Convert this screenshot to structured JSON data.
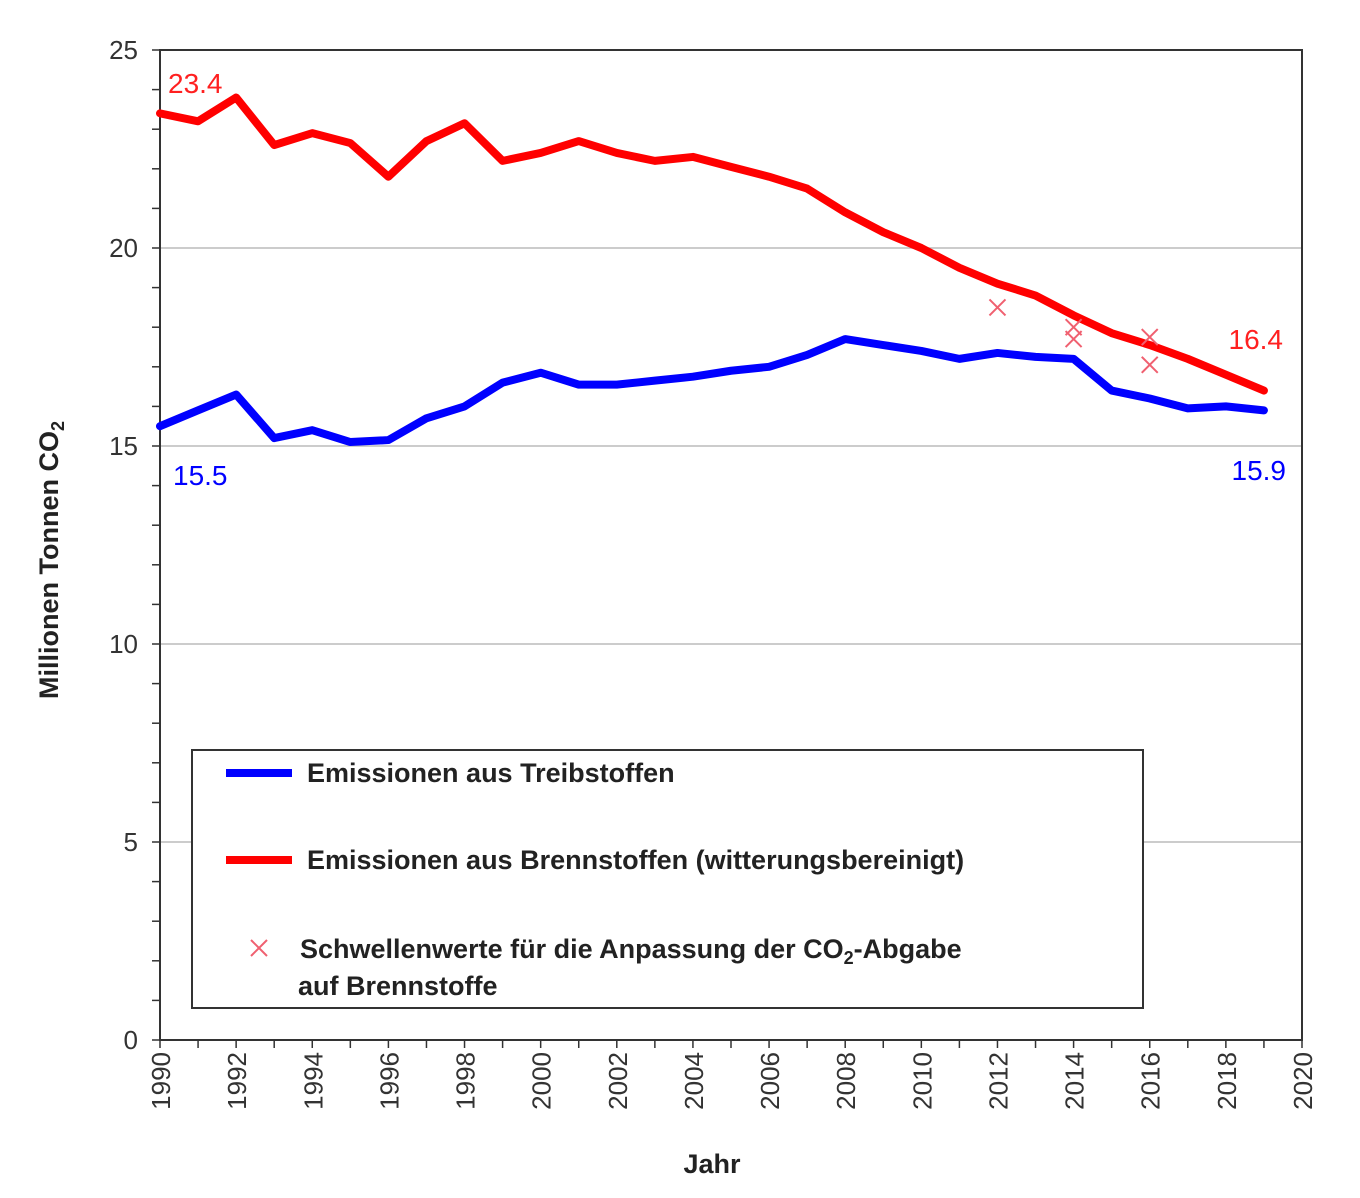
{
  "chart_data": {
    "type": "line",
    "xlabel": "Jahr",
    "ylabel": "Millionen Tonnen CO",
    "ylabel_subscript": "2",
    "xlim": [
      1990,
      2020
    ],
    "ylim": [
      0,
      25
    ],
    "yticks": [
      "0",
      "5",
      "10",
      "15",
      "20",
      "25"
    ],
    "xticks": [
      "1990",
      "1992",
      "1994",
      "1996",
      "1998",
      "2000",
      "2002",
      "2004",
      "2006",
      "2008",
      "2010",
      "2012",
      "2014",
      "2016",
      "2018",
      "2020"
    ],
    "grid": "horizontal",
    "legend_placement": "bottom-center",
    "x": [
      1990,
      1991,
      1992,
      1993,
      1994,
      1995,
      1996,
      1997,
      1998,
      1999,
      2000,
      2001,
      2002,
      2003,
      2004,
      2005,
      2006,
      2007,
      2008,
      2009,
      2010,
      2011,
      2012,
      2013,
      2014,
      2015,
      2016,
      2017,
      2018,
      2019
    ],
    "series": [
      {
        "name": "Emissionen aus Treibstoffen",
        "color": "#0000ff",
        "values": [
          15.5,
          15.9,
          16.3,
          15.2,
          15.4,
          15.1,
          15.15,
          15.7,
          16.0,
          16.6,
          16.85,
          16.55,
          16.55,
          16.65,
          16.75,
          16.9,
          17.0,
          17.3,
          17.7,
          17.55,
          17.4,
          17.2,
          17.35,
          17.25,
          17.2,
          16.4,
          16.2,
          15.95,
          16.0,
          15.9
        ],
        "labels": [
          {
            "x": 1990,
            "text": "15.5"
          },
          {
            "x": 2019,
            "text": "15.9"
          }
        ]
      },
      {
        "name": "Emissionen aus Brennstoffen (witterungsbereinigt)",
        "color": "#ff0000",
        "values": [
          23.4,
          23.2,
          23.8,
          22.6,
          22.9,
          22.65,
          21.8,
          22.7,
          23.15,
          22.2,
          22.4,
          22.7,
          22.4,
          22.2,
          22.3,
          22.05,
          21.8,
          21.5,
          20.9,
          20.4,
          20.0,
          19.5,
          19.1,
          18.8,
          18.3,
          17.85,
          17.55,
          17.2,
          16.8,
          16.4
        ],
        "labels": [
          {
            "x": 1990,
            "text": "23.4"
          },
          {
            "x": 2019,
            "text": "16.4"
          }
        ]
      }
    ],
    "markers": {
      "name_line1": "Schwellenwerte für die Anpassung  der CO",
      "name_sub": "2",
      "name_line1_end": "-Abgabe",
      "name_line2": "auf Brennstoffe",
      "color": "#f06070",
      "points": [
        {
          "x": 2012,
          "y": 18.5
        },
        {
          "x": 2014,
          "y": 18.0
        },
        {
          "x": 2014,
          "y": 17.7
        },
        {
          "x": 2016,
          "y": 17.75
        },
        {
          "x": 2016,
          "y": 17.05
        }
      ]
    }
  }
}
